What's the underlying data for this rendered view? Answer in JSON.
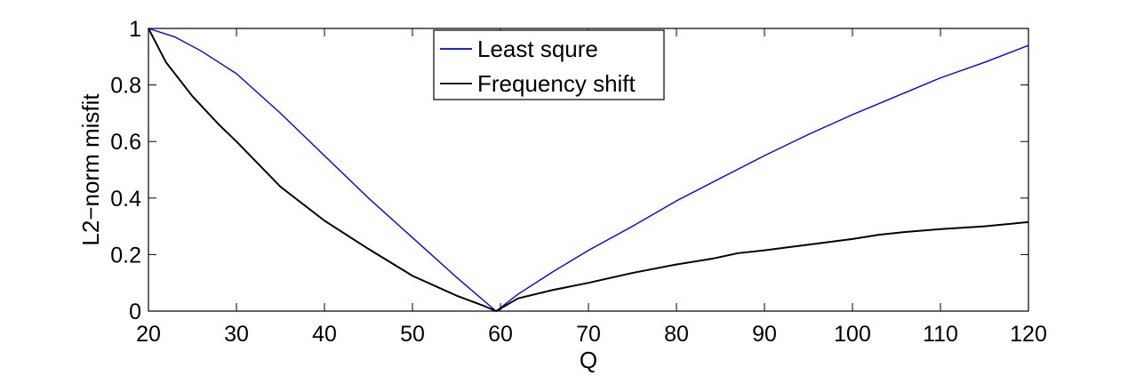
{
  "chart_data": {
    "type": "line",
    "title": "",
    "xlabel": "Q",
    "ylabel": "L2−norm misfit",
    "xlim": [
      20,
      120
    ],
    "ylim": [
      0,
      1
    ],
    "xticks": [
      20,
      30,
      40,
      50,
      60,
      70,
      80,
      90,
      100,
      110,
      120
    ],
    "yticks": [
      0,
      0.2,
      0.4,
      0.6,
      0.8,
      1
    ],
    "ytick_labels": [
      "0",
      "0.2",
      "0.4",
      "0.6",
      "0.8",
      "1"
    ],
    "grid": false,
    "legend_position": "top-center",
    "series": [
      {
        "name": "Least squre",
        "color": "#0000ff",
        "x": [
          20,
          23,
          26,
          30,
          35,
          40,
          45,
          50,
          55,
          59.5,
          62,
          66,
          70,
          75,
          80,
          85,
          90,
          95,
          100,
          105,
          110,
          115,
          120
        ],
        "y": [
          1.0,
          0.97,
          0.92,
          0.84,
          0.7,
          0.55,
          0.4,
          0.26,
          0.12,
          0.0,
          0.06,
          0.14,
          0.215,
          0.3,
          0.39,
          0.47,
          0.55,
          0.625,
          0.695,
          0.76,
          0.825,
          0.88,
          0.94
        ]
      },
      {
        "name": "Frequency shift",
        "color": "#000000",
        "x": [
          20,
          22,
          25,
          28,
          30,
          35,
          40,
          45,
          50,
          55,
          58,
          59.5,
          62,
          66,
          70,
          75,
          80,
          84,
          87,
          90,
          95,
          100,
          103,
          106,
          110,
          115,
          120
        ],
        "y": [
          1.0,
          0.88,
          0.76,
          0.66,
          0.6,
          0.44,
          0.32,
          0.22,
          0.125,
          0.055,
          0.02,
          0.0,
          0.045,
          0.075,
          0.1,
          0.135,
          0.165,
          0.185,
          0.205,
          0.215,
          0.235,
          0.255,
          0.27,
          0.28,
          0.29,
          0.3,
          0.315
        ]
      }
    ]
  }
}
